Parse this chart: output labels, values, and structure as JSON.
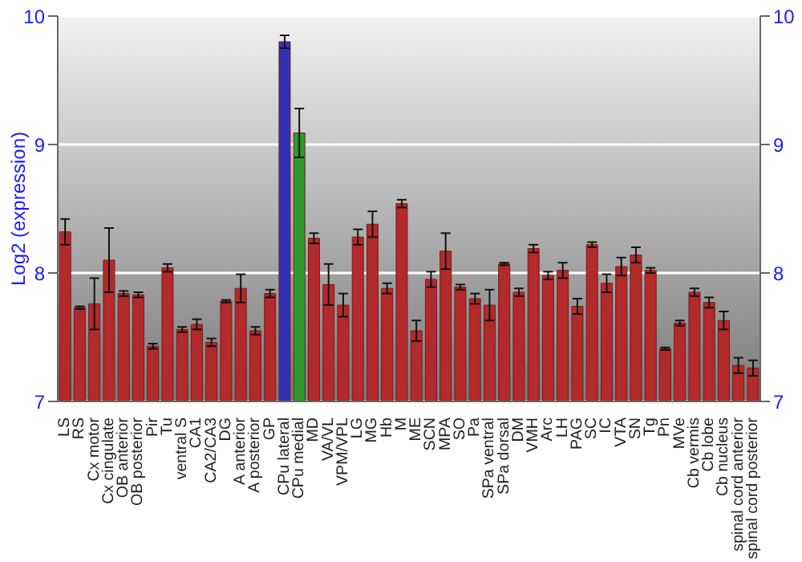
{
  "chart_data": {
    "type": "bar",
    "ylabel": "Log2 (expression)",
    "categories": [
      "LS",
      "RS",
      "Cx motor",
      "Cx cingulate",
      "OB anterior",
      "OB posterior",
      "Pir",
      "Tu",
      "ventral S",
      "CA1",
      "CA2/CA3",
      "DG",
      "A anterior",
      "A posterior",
      "GP",
      "CPu lateral",
      "CPu medial",
      "MD",
      "VA/VL",
      "VPM/VPL",
      "LG",
      "MG",
      "Hb",
      "M",
      "ME",
      "SCN",
      "MPA",
      "SO",
      "Pa",
      "SPa ventral",
      "SPa dorsal",
      "DM",
      "VMH",
      "Arc",
      "LH",
      "PAG",
      "SC",
      "IC",
      "VTA",
      "SN",
      "Tg",
      "Pn",
      "MVe",
      "Cb vermis",
      "Cb lobe",
      "Cb nucleus",
      "spinal cord anterior",
      "spinal cord posterior"
    ],
    "values": [
      8.32,
      7.73,
      7.76,
      8.1,
      7.84,
      7.83,
      7.43,
      8.04,
      7.56,
      7.6,
      7.46,
      7.78,
      7.88,
      7.55,
      7.84,
      9.8,
      9.09,
      8.27,
      7.91,
      7.75,
      8.28,
      8.38,
      7.88,
      8.54,
      7.55,
      7.95,
      8.17,
      7.89,
      7.8,
      7.75,
      8.07,
      7.85,
      8.19,
      7.98,
      8.02,
      7.74,
      8.22,
      7.92,
      8.05,
      8.14,
      8.02,
      7.41,
      7.61,
      7.85,
      7.77,
      7.63,
      7.28,
      7.26
    ],
    "errors": [
      0.1,
      0.01,
      0.2,
      0.25,
      0.02,
      0.02,
      0.02,
      0.03,
      0.02,
      0.04,
      0.03,
      0.01,
      0.11,
      0.03,
      0.03,
      0.05,
      0.19,
      0.04,
      0.16,
      0.09,
      0.06,
      0.1,
      0.04,
      0.03,
      0.08,
      0.06,
      0.14,
      0.02,
      0.04,
      0.12,
      0.01,
      0.03,
      0.03,
      0.03,
      0.06,
      0.06,
      0.02,
      0.07,
      0.07,
      0.06,
      0.02,
      0.01,
      0.02,
      0.03,
      0.04,
      0.07,
      0.06,
      0.06
    ],
    "colors": [
      "#b22a2a",
      "#b22a2a",
      "#b22a2a",
      "#b22a2a",
      "#b22a2a",
      "#b22a2a",
      "#b22a2a",
      "#b22a2a",
      "#b22a2a",
      "#b22a2a",
      "#b22a2a",
      "#b22a2a",
      "#b22a2a",
      "#b22a2a",
      "#b22a2a",
      "#3232b4",
      "#2e9a2e",
      "#b22a2a",
      "#b22a2a",
      "#b22a2a",
      "#b22a2a",
      "#b22a2a",
      "#b22a2a",
      "#b22a2a",
      "#b22a2a",
      "#b22a2a",
      "#b22a2a",
      "#b22a2a",
      "#b22a2a",
      "#b22a2a",
      "#b22a2a",
      "#b22a2a",
      "#b22a2a",
      "#b22a2a",
      "#b22a2a",
      "#b22a2a",
      "#b22a2a",
      "#b22a2a",
      "#b22a2a",
      "#b22a2a",
      "#b22a2a",
      "#b22a2a",
      "#b22a2a",
      "#b22a2a",
      "#b22a2a",
      "#b22a2a",
      "#b22a2a",
      "#b22a2a"
    ],
    "ylim": [
      7,
      10
    ],
    "yticks": [
      7,
      8,
      9,
      10
    ],
    "y2lim": [
      7,
      10
    ],
    "y2ticks": [
      7,
      8,
      9,
      10
    ],
    "grid": "y"
  }
}
